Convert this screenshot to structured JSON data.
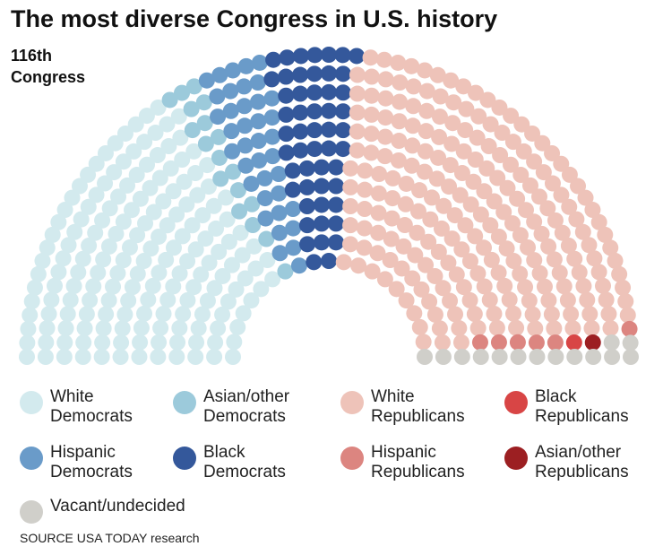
{
  "chart_data": {
    "type": "parliament",
    "title": "The most diverse Congress in U.S. history",
    "subtitle": "116th Congress",
    "source": "SOURCE USA TODAY research",
    "series": [
      {
        "name": "White Democrats",
        "color": "#d3eaee",
        "value": 175
      },
      {
        "name": "Asian/other Democrats",
        "color": "#9ccadb",
        "value": 18
      },
      {
        "name": "Hispanic Democrats",
        "color": "#6a9bc9",
        "value": 38
      },
      {
        "name": "Black Democrats",
        "color": "#34589b",
        "value": 52
      },
      {
        "name": "White Republicans",
        "color": "#eec3b9",
        "value": 230
      },
      {
        "name": "Hispanic Republicans",
        "color": "#dc8580",
        "value": 6
      },
      {
        "name": "Black Republicans",
        "color": "#d84545",
        "value": 1
      },
      {
        "name": "Asian/other Republicans",
        "color": "#9c1f22",
        "value": 1
      },
      {
        "name": "Vacant/undecided",
        "color": "#d0cfca",
        "value": 14
      }
    ]
  }
}
